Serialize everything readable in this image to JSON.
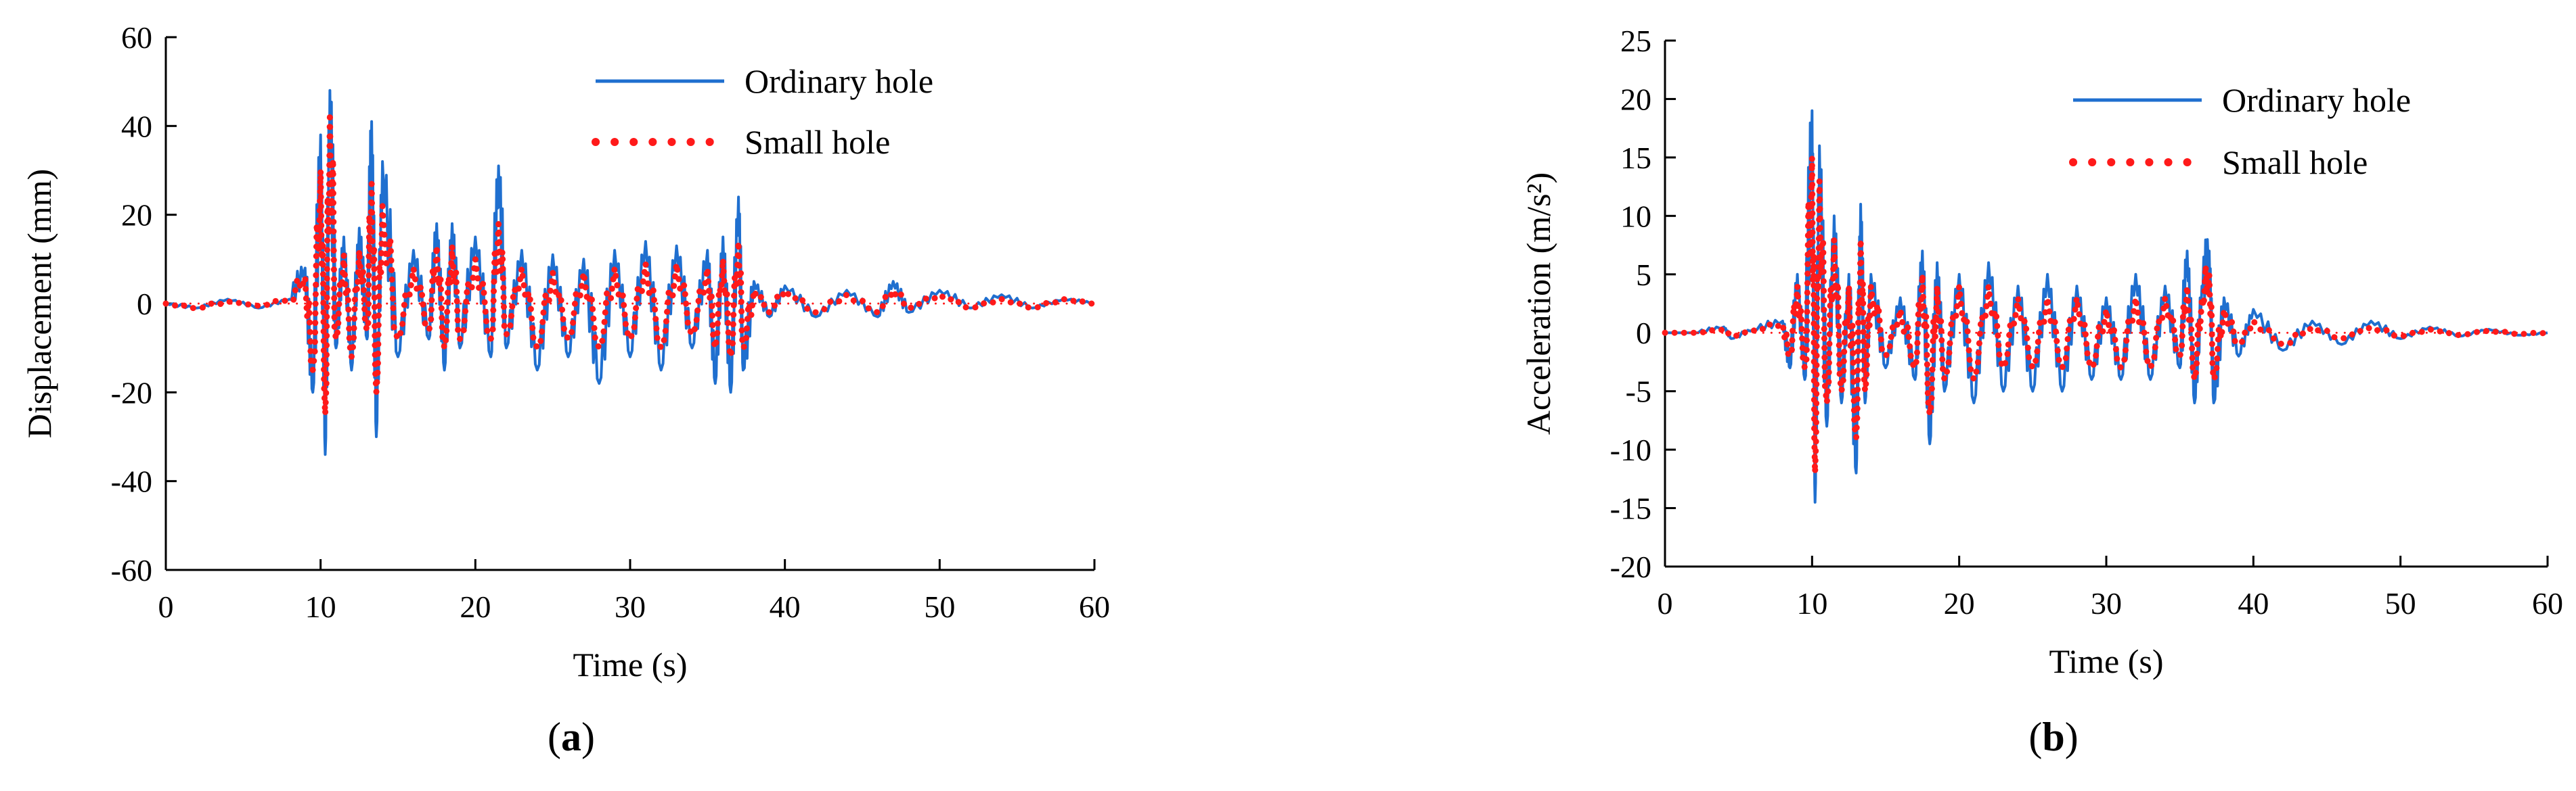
{
  "chart_data": [
    {
      "type": "line",
      "panel_label": "a",
      "xlabel": "Time (s)",
      "ylabel": "Displacement (mm)",
      "xlim": [
        0,
        60
      ],
      "ylim": [
        -60,
        60
      ],
      "xticks": [
        0,
        10,
        20,
        30,
        40,
        50,
        60
      ],
      "yticks": [
        -60,
        -40,
        -20,
        0,
        20,
        40,
        60
      ],
      "grid": false,
      "legend_position": "top-right",
      "series": [
        {
          "name": "Ordinary hole",
          "color": "#1f6fcf",
          "style": "solid",
          "x": [
            0,
            2,
            4,
            6,
            8,
            9,
            9.5,
            10,
            10.3,
            10.6,
            11,
            11.5,
            12,
            12.5,
            13,
            13.3,
            13.6,
            14,
            15,
            16,
            17,
            17.5,
            18,
            18.5,
            19,
            20,
            21,
            21.5,
            22,
            23,
            24,
            25,
            26,
            27,
            28,
            29,
            30,
            31,
            32,
            33,
            34,
            35,
            35.5,
            36,
            36.5,
            37,
            37.3,
            38,
            39,
            40,
            42,
            44,
            46,
            47,
            48,
            50,
            52,
            54,
            56,
            58,
            60
          ],
          "y": [
            0,
            -1,
            1,
            -1,
            1,
            8,
            -20,
            38,
            -34,
            48,
            -10,
            15,
            -15,
            17,
            -8,
            41,
            -30,
            32,
            -12,
            12,
            -8,
            18,
            -15,
            18,
            -10,
            15,
            -12,
            31,
            -10,
            12,
            -15,
            11,
            -12,
            10,
            -18,
            12,
            -12,
            14,
            -15,
            13,
            -10,
            12,
            -18,
            15,
            -20,
            24,
            -15,
            5,
            -3,
            4,
            -3,
            3,
            -3,
            5,
            -2,
            3,
            -1,
            2,
            -1,
            1,
            0
          ]
        },
        {
          "name": "Small hole",
          "color": "#ff1a1a",
          "style": "dotted",
          "x": [
            0,
            2,
            4,
            6,
            8,
            9,
            9.5,
            10,
            10.3,
            10.6,
            11,
            11.5,
            12,
            12.5,
            13,
            13.3,
            13.6,
            14,
            15,
            16,
            17,
            17.5,
            18,
            18.5,
            19,
            20,
            21,
            21.5,
            22,
            23,
            24,
            25,
            26,
            27,
            28,
            29,
            30,
            31,
            32,
            33,
            34,
            35,
            35.5,
            36,
            36.5,
            37,
            37.3,
            38,
            39,
            40,
            42,
            44,
            46,
            47,
            48,
            50,
            52,
            54,
            56,
            58,
            60
          ],
          "y": [
            0,
            -1,
            0.5,
            -0.5,
            1,
            6,
            -15,
            30,
            -25,
            43,
            -8,
            11,
            -12,
            12,
            -6,
            27,
            -20,
            22,
            -8,
            8,
            -6,
            13,
            -10,
            13,
            -8,
            10,
            -8,
            18,
            -7,
            8,
            -10,
            7,
            -8,
            7,
            -10,
            8,
            -8,
            9,
            -10,
            9,
            -7,
            8,
            -10,
            10,
            -12,
            14,
            -10,
            3,
            -2,
            3,
            -2,
            2,
            -2,
            3,
            -1,
            2,
            -1,
            1,
            -1,
            1,
            0
          ]
        }
      ]
    },
    {
      "type": "line",
      "panel_label": "b",
      "xlabel": "Time (s)",
      "ylabel": "Acceleration (m/s²)",
      "xlim": [
        0,
        60
      ],
      "ylim": [
        -20,
        25
      ],
      "xticks": [
        0,
        10,
        20,
        30,
        40,
        50,
        60
      ],
      "yticks": [
        -20,
        -15,
        -10,
        -5,
        0,
        5,
        10,
        15,
        20,
        25
      ],
      "grid": false,
      "legend_position": "top-right",
      "series": [
        {
          "name": "Ordinary hole",
          "color": "#1f6fcf",
          "style": "solid",
          "x": [
            0,
            2,
            4,
            4.5,
            6,
            8,
            8.5,
            9,
            9.5,
            10,
            10.2,
            10.5,
            11,
            11.5,
            12,
            12.5,
            13,
            13.3,
            13.6,
            14,
            15,
            16,
            17,
            17.5,
            18,
            18.5,
            19,
            20,
            21,
            22,
            23,
            24,
            25,
            26,
            27,
            28,
            29,
            30,
            31,
            32,
            33,
            34,
            35,
            35.5,
            36,
            36.5,
            37,
            37.3,
            38,
            39,
            40,
            42,
            44,
            46,
            48,
            50,
            52,
            54,
            56,
            58,
            60
          ],
          "y": [
            0,
            0,
            0.5,
            -0.5,
            0.3,
            1,
            -3,
            5,
            -4,
            19,
            -14.5,
            16,
            -8,
            10,
            -6,
            5,
            -12,
            11,
            -6,
            5,
            -3,
            3,
            -4,
            7,
            -9.5,
            6,
            -5,
            5,
            -6,
            6,
            -5,
            4,
            -5,
            5,
            -5,
            4,
            -4,
            3,
            -4,
            5,
            -4,
            4,
            -3,
            7,
            -6,
            4,
            7,
            -6,
            3,
            -2,
            2,
            -1.5,
            1,
            -1,
            1,
            -0.5,
            0.5,
            -0.3,
            0.3,
            -0.2,
            0
          ]
        },
        {
          "name": "Small hole",
          "color": "#ff1a1a",
          "style": "dotted",
          "x": [
            0,
            2,
            4,
            4.5,
            6,
            8,
            8.5,
            9,
            9.5,
            10,
            10.2,
            10.5,
            11,
            11.5,
            12,
            12.5,
            13,
            13.3,
            13.6,
            14,
            15,
            16,
            17,
            17.5,
            18,
            18.5,
            19,
            20,
            21,
            22,
            23,
            24,
            25,
            26,
            27,
            28,
            29,
            30,
            31,
            32,
            33,
            34,
            35,
            35.5,
            36,
            36.5,
            37,
            37.3,
            38,
            39,
            40,
            42,
            44,
            46,
            48,
            50,
            52,
            54,
            56,
            58,
            60
          ],
          "y": [
            0,
            0,
            0.3,
            -0.3,
            0.2,
            0.8,
            -2,
            4,
            -3,
            15,
            -12,
            13,
            -6,
            8,
            -5,
            4,
            -9,
            8,
            -5,
            4,
            -2,
            2,
            -3,
            5,
            -7,
            4,
            -4,
            4,
            -4,
            4,
            -3,
            3,
            -3,
            3,
            -3,
            3,
            -3,
            2,
            -3,
            3,
            -3,
            3,
            -2,
            4,
            -4,
            3,
            5,
            -4,
            2,
            -1,
            1,
            -1,
            0.5,
            -0.5,
            0.5,
            -0.3,
            0.3,
            -0.2,
            0.2,
            -0.1,
            0
          ]
        }
      ]
    }
  ]
}
